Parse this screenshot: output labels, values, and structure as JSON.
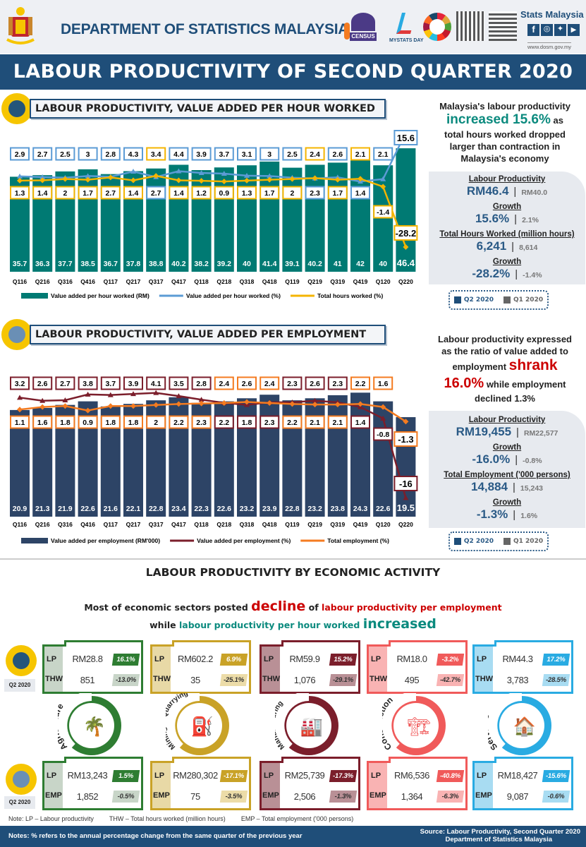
{
  "header": {
    "org": "DEPARTMENT OF STATISTICS MALAYSIA",
    "census": "CENSUS",
    "mystats": "MYSTATS DAY",
    "stats_brand": "Stats Malaysia",
    "website": "www.dosm.gov.my"
  },
  "title": "LABOUR PRODUCTIVITY OF SECOND QUARTER 2020",
  "section1": {
    "heading": "LABOUR PRODUCTIVITY, VALUE ADDED PER HOUR WORKED",
    "headline": {
      "l1": "Malaysia's labour productivity",
      "hl": "increased 15.6%",
      "as": " as",
      "l3": "total hours worked dropped",
      "l4": "larger than contraction in",
      "l5": "Malaysia's economy"
    },
    "stats": [
      {
        "label": "Labour Productivity",
        "q2": "RM46.4",
        "q1": "RM40.0"
      },
      {
        "label": "Growth",
        "q2": "15.6%",
        "q1": "2.1%"
      },
      {
        "label": "Total Hours Worked (million hours)",
        "q2": "6,241",
        "q1": "8,614"
      },
      {
        "label": "Growth",
        "q2": "-28.2%",
        "q1": "-1.4%"
      }
    ],
    "legend": {
      "q2": "Q2 2020",
      "q1": "Q1 2020"
    }
  },
  "section2": {
    "heading": "LABOUR PRODUCTIVITY, VALUE ADDED PER EMPLOYMENT",
    "headline": {
      "l1": "Labour productivity expressed",
      "l2": "as the ratio of value added to",
      "l3": "employment",
      "hl1": "shrank",
      "hl2": "16.0%",
      "l4": " while employment",
      "l5": "declined 1.3%"
    },
    "stats": [
      {
        "label": "Labour Productivity",
        "q2": "RM19,455",
        "q1": "RM22,577"
      },
      {
        "label": "Growth",
        "q2": "-16.0%",
        "q1": "-0.8%"
      },
      {
        "label": "Total Employment ('000 persons)",
        "q2": "14,884",
        "q1": "15,243"
      },
      {
        "label": "Growth",
        "q2": "-1.3%",
        "q1": "1.6%"
      }
    ],
    "legend": {
      "q2": "Q2 2020",
      "q1": "Q1 2020"
    }
  },
  "chart_data": [
    {
      "type": "bar+line",
      "categories": [
        "Q116",
        "Q216",
        "Q316",
        "Q416",
        "Q117",
        "Q217",
        "Q317",
        "Q417",
        "Q118",
        "Q218",
        "Q318",
        "Q418",
        "Q119",
        "Q219",
        "Q319",
        "Q419",
        "Q120",
        "Q220"
      ],
      "series": [
        {
          "name": "Value added per hour worked (RM)",
          "type": "bar",
          "color": "#007a73",
          "values": [
            35.7,
            36.3,
            37.7,
            38.5,
            36.7,
            37.8,
            38.8,
            40.2,
            38.2,
            39.2,
            40.0,
            41.4,
            39.1,
            40.2,
            41.0,
            42.0,
            40.0,
            46.4
          ]
        },
        {
          "name": "Value added per hour worked (%)",
          "type": "line",
          "color": "#5b9bd5",
          "marker": "triangle",
          "values": [
            2.9,
            2.7,
            2.5,
            3.0,
            2.8,
            4.3,
            2.7,
            4.4,
            3.9,
            3.7,
            3.1,
            3.0,
            2.5,
            2.3,
            2.6,
            1.4,
            2.1,
            15.6
          ]
        },
        {
          "name": "Total hours worked (%)",
          "type": "line",
          "color": "#f4b400",
          "marker": "diamond",
          "values": [
            1.3,
            1.4,
            2.0,
            1.7,
            2.7,
            1.4,
            3.4,
            1.4,
            1.2,
            0.9,
            1.3,
            1.7,
            2.0,
            2.4,
            1.7,
            2.1,
            -1.4,
            -28.2
          ]
        }
      ],
      "legend": "bottom",
      "grid": false
    },
    {
      "type": "bar+line",
      "categories": [
        "Q116",
        "Q216",
        "Q316",
        "Q416",
        "Q117",
        "Q217",
        "Q317",
        "Q417",
        "Q118",
        "Q218",
        "Q318",
        "Q418",
        "Q119",
        "Q219",
        "Q319",
        "Q419",
        "Q120",
        "Q220"
      ],
      "series": [
        {
          "name": "Value added per employment (RM'000)",
          "type": "bar",
          "color": "#2d4466",
          "values": [
            20.9,
            21.3,
            21.9,
            22.6,
            21.6,
            22.1,
            22.8,
            23.4,
            22.3,
            22.6,
            23.2,
            23.9,
            22.8,
            23.2,
            23.8,
            24.3,
            22.6,
            19.5
          ]
        },
        {
          "name": "Value added per employment (%)",
          "type": "line",
          "color": "#7b1e2b",
          "marker": "triangle",
          "values": [
            3.2,
            2.6,
            2.7,
            3.8,
            3.7,
            3.9,
            4.1,
            3.5,
            2.8,
            2.2,
            1.8,
            2.3,
            2.3,
            2.6,
            2.3,
            1.4,
            -0.8,
            -16.0
          ]
        },
        {
          "name": "Total employment (%)",
          "type": "line",
          "color": "#f47b20",
          "marker": "diamond",
          "values": [
            1.1,
            1.6,
            1.8,
            0.9,
            1.8,
            1.8,
            2.0,
            2.2,
            2.3,
            2.4,
            2.6,
            2.4,
            2.2,
            2.1,
            2.1,
            2.2,
            1.6,
            -1.3
          ]
        }
      ],
      "legend": "bottom",
      "grid": false
    }
  ],
  "section3": {
    "heading": "LABOUR PRODUCTIVITY BY ECONOMIC ACTIVITY",
    "sub1a": "Most of economic sectors posted ",
    "sub1b": "decline",
    "sub1c": " of ",
    "sub1d": "labour productivity per employment",
    "sub2a": "while ",
    "sub2b": "labour productivity per hour worked ",
    "sub2c": "increased",
    "q2tag": "Q2 2020",
    "keys": {
      "lp": "LP",
      "thw": "THW",
      "emp": "EMP"
    },
    "sectors": [
      {
        "name": "Agriculture",
        "color": "#2e7d32",
        "tint": "#c8d5c8",
        "g2bg": "#c8d5c8",
        "lp_h": "RM28.8",
        "lp_h_g": "16.1%",
        "thw": "851",
        "thw_g": "-13.0%",
        "lp_e": "RM13,243",
        "lp_e_g": "1.5%",
        "emp": "1,852",
        "emp_g": "-0.5%",
        "icon": "palm-tree"
      },
      {
        "name": "Mining & Quarrying",
        "color": "#c9a227",
        "tint": "#e8d9a6",
        "g2bg": "#ecdca8",
        "lp_h": "RM602.2",
        "lp_h_g": "6.9%",
        "thw": "35",
        "thw_g": "-25.1%",
        "lp_e": "RM280,302",
        "lp_e_g": "-17.1%",
        "emp": "75",
        "emp_g": "-3.5%",
        "icon": "oil-rig"
      },
      {
        "name": "Manufacturing",
        "color": "#7b1e2b",
        "tint": "#b99096",
        "g2bg": "#b99096",
        "lp_h": "RM59.9",
        "lp_h_g": "15.2%",
        "thw": "1,076",
        "thw_g": "-29.1%",
        "lp_e": "RM25,739",
        "lp_e_g": "-17.3%",
        "emp": "2,506",
        "emp_g": "-1.3%",
        "icon": "factory"
      },
      {
        "name": "Construction",
        "color": "#f05a5a",
        "tint": "#f9b3b3",
        "g2bg": "#f9b3b3",
        "lp_h": "RM18.0",
        "lp_h_g": "-3.2%",
        "thw": "495",
        "thw_g": "-42.7%",
        "lp_e": "RM6,536",
        "lp_e_g": "-40.8%",
        "emp": "1,364",
        "emp_g": "-6.3%",
        "icon": "crane"
      },
      {
        "name": "Services",
        "color": "#29abe2",
        "tint": "#a8dcf2",
        "g2bg": "#a8dcf2",
        "lp_h": "RM44.3",
        "lp_h_g": "17.2%",
        "thw": "3,783",
        "thw_g": "-28.5%",
        "lp_e": "RM18,427",
        "lp_e_g": "-15.6%",
        "emp": "9,087",
        "emp_g": "-0.6%",
        "icon": "house-dollar"
      }
    ]
  },
  "notes": {
    "abbrev_lp": "Note: LP – Labour productivity",
    "abbrev_thw": "THW – Total hours worked (million hours)",
    "abbrev_emp": "EMP – Total employment ('000 persons)",
    "footnote": "Notes: % refers to the annual percentage change from the same quarter of the previous year",
    "source1": "Source: Labour Productivity, Second Quarter 2020",
    "source2": "Department of Statistics Malaysia"
  }
}
